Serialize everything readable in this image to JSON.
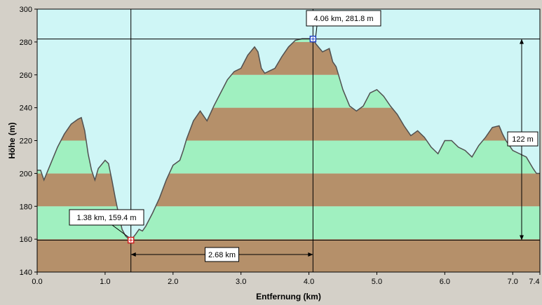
{
  "chart_data": {
    "type": "area",
    "title": "",
    "xlabel": "Entfernung   (km)",
    "ylabel": "Höhe (m)",
    "xlim": [
      0,
      7.4
    ],
    "ylim": [
      140,
      300
    ],
    "x_ticks": [
      0,
      1,
      2,
      3,
      4,
      5,
      6,
      7,
      7.4
    ],
    "x_tick_labels": [
      "0.0",
      "1.0",
      "2.0",
      "3.0",
      "4.0",
      "5.0",
      "6.0",
      "7.0",
      "7.4"
    ],
    "y_ticks": [
      140,
      160,
      180,
      200,
      220,
      240,
      260,
      280,
      300
    ],
    "y_tick_labels": [
      "140",
      "160",
      "180",
      "200",
      "220",
      "240",
      "260",
      "280",
      "300"
    ],
    "band_step": 20,
    "grid": false,
    "colors": {
      "plot_background": "#cff6f6",
      "band_brown": "#b5906a",
      "band_green": "#a0f0c0",
      "outline": "#505050",
      "frame_background": "#d4d0c8",
      "marker_red": "#d02020",
      "marker_blue": "#2040c0"
    },
    "series": [
      {
        "x": [
          0.0,
          0.05,
          0.1,
          0.15,
          0.2,
          0.3,
          0.4,
          0.5,
          0.6,
          0.65,
          0.7,
          0.75,
          0.8,
          0.85,
          0.9,
          1.0,
          1.05,
          1.1,
          1.15,
          1.2,
          1.25,
          1.3,
          1.35,
          1.38,
          1.45,
          1.5,
          1.55,
          1.6,
          1.7,
          1.8,
          1.9,
          2.0,
          2.1,
          2.15,
          2.2,
          2.3,
          2.4,
          2.5,
          2.6,
          2.7,
          2.8,
          2.9,
          3.0,
          3.1,
          3.2,
          3.25,
          3.3,
          3.35,
          3.4,
          3.5,
          3.6,
          3.7,
          3.8,
          3.9,
          4.0,
          4.06,
          4.1,
          4.2,
          4.3,
          4.35,
          4.4,
          4.5,
          4.55,
          4.6,
          4.7,
          4.8,
          4.9,
          5.0,
          5.1,
          5.2,
          5.3,
          5.4,
          5.5,
          5.6,
          5.7,
          5.8,
          5.9,
          6.0,
          6.1,
          6.2,
          6.3,
          6.4,
          6.5,
          6.6,
          6.7,
          6.8,
          6.85,
          6.9,
          7.0,
          7.1,
          7.2,
          7.3,
          7.35,
          7.4
        ],
        "y": [
          202,
          202,
          196,
          201,
          206,
          216,
          224,
          230,
          233,
          234,
          226,
          212,
          202,
          196,
          203,
          208,
          206,
          196,
          185,
          175,
          166,
          162,
          160,
          159.4,
          163,
          166,
          165,
          168,
          176,
          185,
          196,
          205,
          208,
          214,
          221,
          232,
          238,
          232,
          241,
          249,
          257,
          262,
          264,
          272,
          277,
          274,
          264,
          261,
          262,
          264,
          271,
          277,
          281,
          282,
          282,
          281.8,
          279,
          274,
          276,
          268,
          265,
          251,
          246,
          241,
          238,
          241,
          249,
          251,
          247,
          241,
          236,
          229,
          223,
          226,
          222,
          216,
          212,
          220,
          220,
          216,
          214,
          210,
          217,
          222,
          228,
          229,
          224,
          220,
          214,
          212,
          210,
          203,
          200,
          200
        ]
      }
    ],
    "annotations": {
      "min_point": {
        "x": 1.38,
        "y": 159.4,
        "label": "1.38 km, 159.4 m"
      },
      "max_point": {
        "x": 4.06,
        "y": 281.8,
        "label": "4.06 km, 281.8 m"
      },
      "distance": {
        "x_from": 1.38,
        "x_to": 4.06,
        "label": "2.68 km"
      },
      "height_diff": {
        "y_from": 159.4,
        "y_to": 281.8,
        "label": "122 m"
      }
    }
  }
}
